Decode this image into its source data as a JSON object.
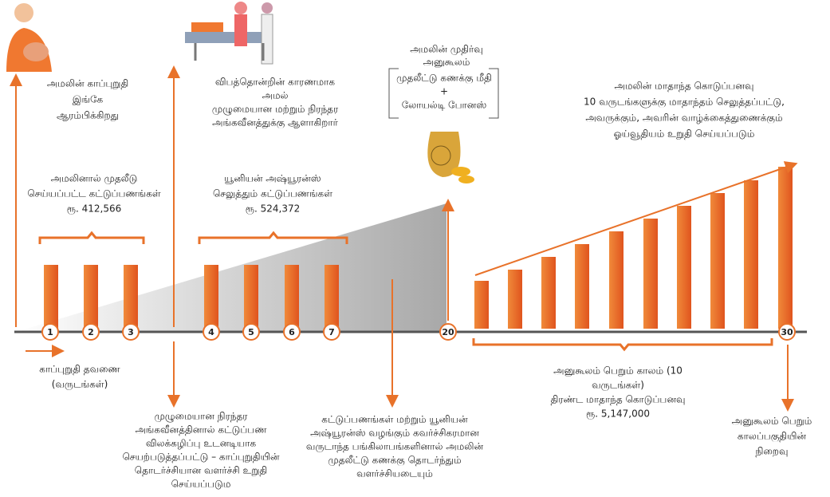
{
  "callouts": {
    "start": [
      "அமலின் காப்புறுதி",
      "இங்கே",
      "ஆரம்பிக்கிறது"
    ],
    "accident": [
      "விபத்தொன்றின் காரணமாக",
      "அமல்",
      "முழுமையான மற்றும் நிரந்தர",
      "அங்கவீனத்துக்கு ஆளாகிறார்"
    ],
    "maturity_title": [
      "அமலின் முதிர்வு",
      "அனுகூலம்"
    ],
    "maturity_box": [
      "முதலீட்டு கணக்கு மீதி",
      "+",
      "லோயல்டி போனஸ்"
    ],
    "pension": [
      "அமலின் மாதாந்த கொடுப்பனவு",
      "10 வருடங்களுக்கு மாதாந்தம் செலுத்தப்பட்டு,",
      "அவருக்கும், அவரின் வாழ்க்கைத்துணைக்கும்",
      "ஓய்வூதியம் உறுதி செய்யப்படும்"
    ],
    "paid_by_amal": [
      "அமலினால் முதலீடு",
      "செய்யப்பட்ட கட்டுப்பணங்கள்",
      "ரூ. 412,566"
    ],
    "paid_by_union": [
      "யூனியன் அஷ்யூரன்ஸ்",
      "செலுத்தும் கட்டுப்பணங்கள்",
      "ரூ. 524,372"
    ],
    "term": [
      "காப்புறுதி தவணை",
      "(வருடங்கள்)"
    ],
    "waiver": [
      "முழுமையான நிரந்தர",
      "அங்கவீனத்தினால் கட்டுப்பண",
      "விலக்கழிப்பு உடனடியாக",
      "செயற்படுத்தப்பட்டு – காப்புறுதியின்",
      "தொடர்ச்சியான வளர்ச்சி உறுதி",
      "செய்யப்படும"
    ],
    "growth": [
      "கட்டுப்பணங்கள் மற்றும் யூனியன்",
      "அஷ்யூரன்ஸ் வழங்கும் கவர்ச்சிகரமான",
      "வருடாந்த பங்கிலாபங்களினால் அமலின்",
      "முதலீட்டு கணக்கு தொடர்ந்தும்",
      "வளர்ச்சியடையும்"
    ],
    "benefit_period": [
      "அனுகூலம் பெறும் காலம் (10",
      "வருடங்கள்)",
      "திரண்ட மாதாந்த கொடுப்பனவு",
      "ரூ. 5,147,000"
    ],
    "end": [
      "அனுகூலம் பெறும்",
      "காலப்பகுதியின்",
      "நிறைவு"
    ]
  },
  "years": [
    "1",
    "2",
    "3",
    "4",
    "5",
    "6",
    "7",
    "20",
    "30"
  ]
}
